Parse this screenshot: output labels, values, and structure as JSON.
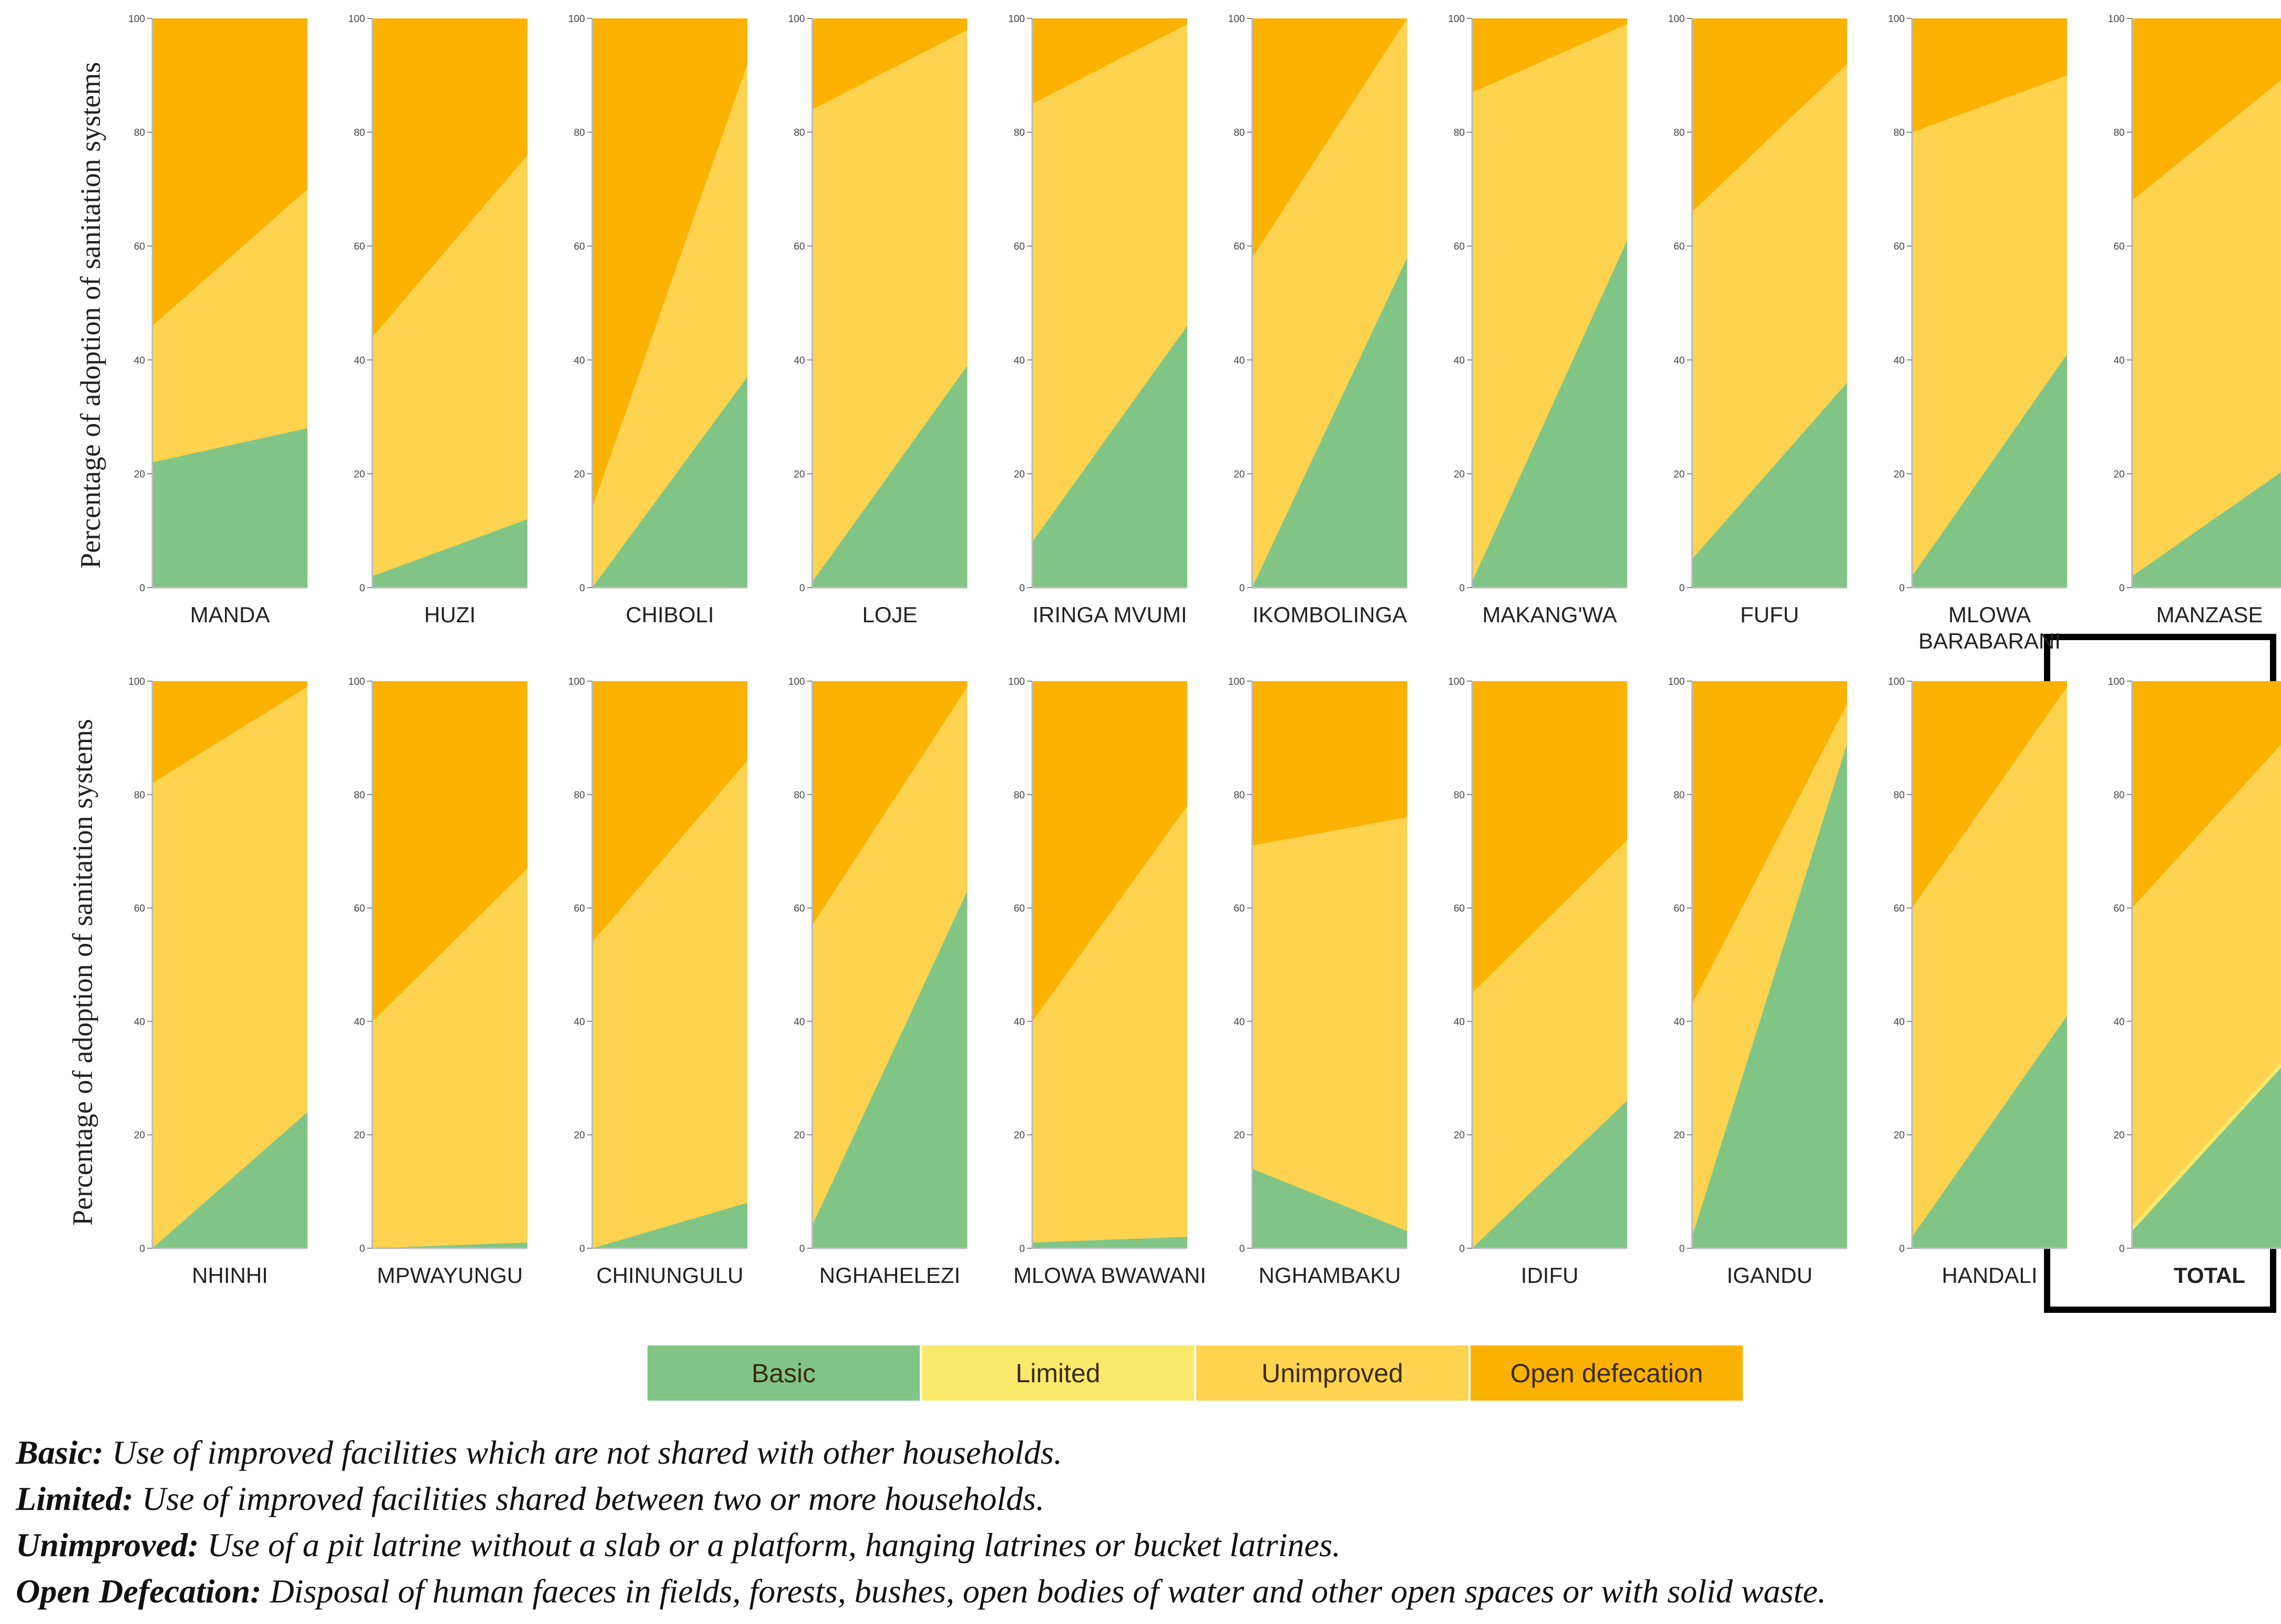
{
  "chart_data": {
    "type": "area",
    "subtype": "stacked-percentage-small-multiples",
    "ylabel": "Percentage of adoption of sanitation systems",
    "ylim": [
      0,
      100
    ],
    "yticks": [
      "0",
      "20",
      "40",
      "60",
      "80",
      "100"
    ],
    "x": [
      "start",
      "end"
    ],
    "series_order": [
      "Basic",
      "Limited",
      "Unimproved",
      "Open defecation"
    ],
    "colors": {
      "Basic": "#80c586",
      "Limited": "#fbe96b",
      "Unimproved": "#fdd34f",
      "Open defecation": "#fbb203"
    },
    "note": "Values are cumulative boundaries (percent) at the left and right edges of each panel.",
    "panels": [
      {
        "label": "MANDA",
        "basic_top": [
          22,
          28
        ],
        "unimproved_top": [
          46,
          70
        ]
      },
      {
        "label": "HUZI",
        "basic_top": [
          2,
          12
        ],
        "unimproved_top": [
          44,
          76
        ]
      },
      {
        "label": "CHIBOLI",
        "basic_top": [
          0,
          37
        ],
        "unimproved_top": [
          14,
          92
        ]
      },
      {
        "label": "LOJE",
        "basic_top": [
          1,
          39
        ],
        "unimproved_top": [
          84,
          98
        ]
      },
      {
        "label": "IRINGA MVUMI",
        "basic_top": [
          8,
          46
        ],
        "unimproved_top": [
          85,
          99
        ]
      },
      {
        "label": "IKOMBOLINGA",
        "basic_top": [
          0,
          58
        ],
        "unimproved_top": [
          58,
          100
        ]
      },
      {
        "label": "MAKANG'WA",
        "basic_top": [
          1,
          61
        ],
        "unimproved_top": [
          87,
          99
        ]
      },
      {
        "label": "FUFU",
        "basic_top": [
          5,
          36
        ],
        "unimproved_top": [
          66,
          92
        ]
      },
      {
        "label": "MLOWA BARABARANI",
        "basic_top": [
          2,
          41
        ],
        "unimproved_top": [
          80,
          90
        ]
      },
      {
        "label": "MANZASE",
        "basic_top": [
          2,
          21
        ],
        "unimproved_top": [
          68,
          90
        ]
      },
      {
        "label": "NHINHI",
        "basic_top": [
          0,
          24
        ],
        "unimproved_top": [
          82,
          99
        ]
      },
      {
        "label": "MPWAYUNGU",
        "basic_top": [
          0,
          1
        ],
        "unimproved_top": [
          40,
          67
        ]
      },
      {
        "label": "CHINUNGULU",
        "basic_top": [
          0,
          8
        ],
        "unimproved_top": [
          54,
          86
        ]
      },
      {
        "label": "NGHAHELEZI",
        "basic_top": [
          4,
          63
        ],
        "unimproved_top": [
          57,
          99
        ]
      },
      {
        "label": "MLOWA BWAWANI",
        "basic_top": [
          1,
          2
        ],
        "unimproved_top": [
          40,
          78
        ]
      },
      {
        "label": "NGHAMBAKU",
        "basic_top": [
          14,
          3
        ],
        "unimproved_top": [
          71,
          76
        ]
      },
      {
        "label": "IDIFU",
        "basic_top": [
          0,
          26
        ],
        "unimproved_top": [
          45,
          72
        ]
      },
      {
        "label": "IGANDU",
        "basic_top": [
          2,
          89
        ],
        "unimproved_top": [
          43,
          96
        ]
      },
      {
        "label": "HANDALI",
        "basic_top": [
          2,
          41
        ],
        "unimproved_top": [
          60,
          99
        ]
      },
      {
        "label": "TOTAL",
        "basic_top": [
          3,
          33
        ],
        "limited_top": [
          4,
          34
        ],
        "unimproved_top": [
          60,
          90
        ],
        "highlighted": true
      }
    ]
  },
  "legend": {
    "basic": "Basic",
    "limited": "Limited",
    "unimproved": "Unimproved",
    "open_defecation": "Open defecation"
  },
  "definitions": [
    {
      "term": "Basic:",
      "text": " Use of improved facilities which are not shared with other households."
    },
    {
      "term": "Limited:",
      "text": " Use of improved facilities shared between two or more households."
    },
    {
      "term": "Unimproved:",
      "text": " Use of a pit latrine without a slab or a platform, hanging latrines or bucket latrines."
    },
    {
      "term": "Open Defecation:",
      "text": " Disposal of human faeces in fields, forests, bushes, open bodies of water and other open spaces or with solid waste."
    }
  ]
}
